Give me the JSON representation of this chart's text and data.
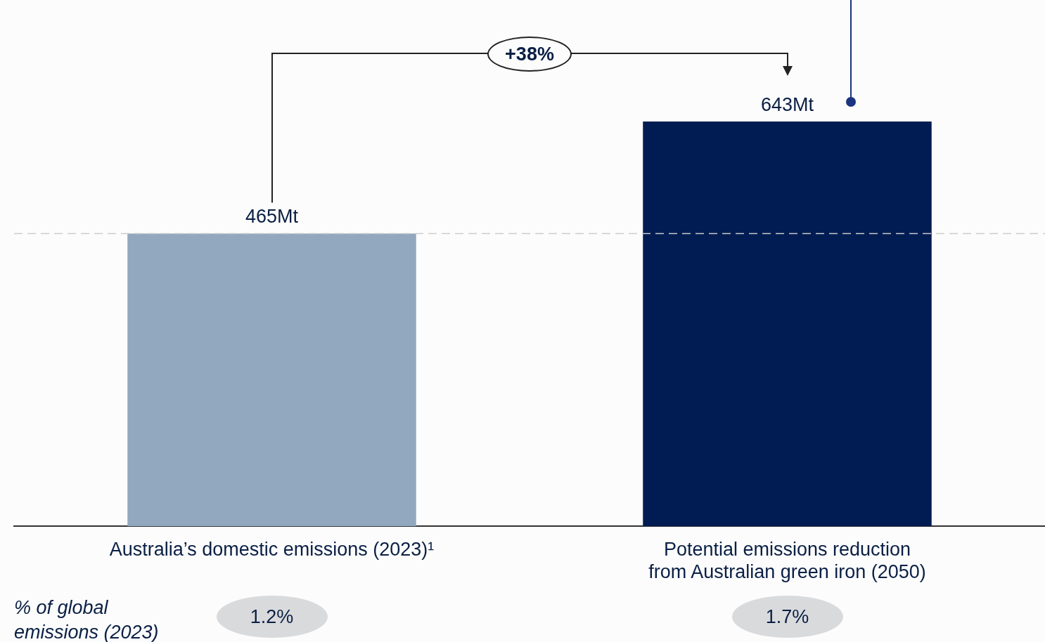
{
  "chart_data": {
    "type": "bar",
    "categories": [
      "Australia’s domestic emissions (2023)¹",
      "Potential emissions reduction from Australian green iron (2050)"
    ],
    "values": [
      465,
      643
    ],
    "colors": [
      "#92a8bf",
      "#001c52"
    ],
    "value_labels": [
      "465Mt",
      "643Mt"
    ],
    "ref_lines": [
      {
        "axis": "y",
        "value": 465,
        "color": "#cccccc",
        "line_style": "dashed"
      }
    ],
    "annotations": [
      "+38%",
      "% of global emissions (2023)",
      "1.2%",
      "1.7%"
    ],
    "legend": false
  }
}
